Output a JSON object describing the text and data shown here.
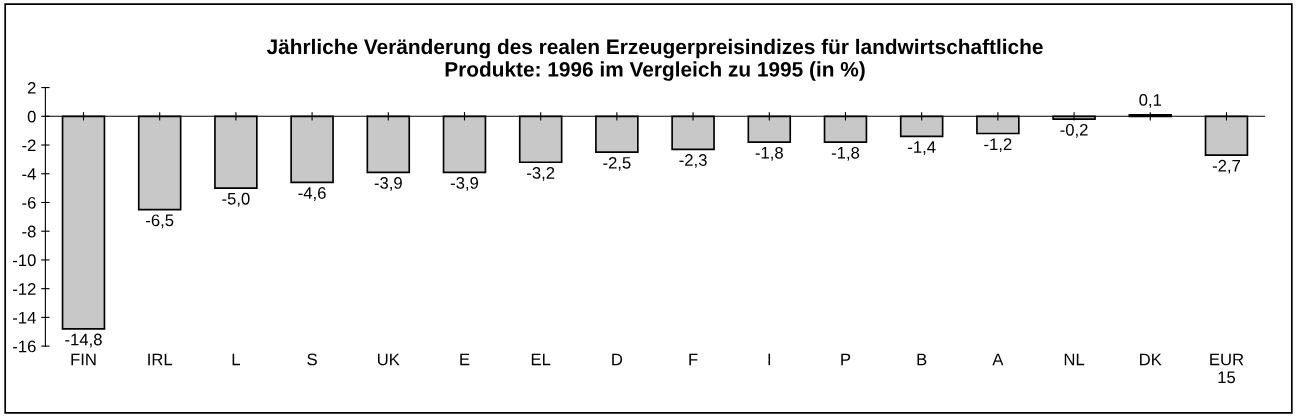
{
  "chart_data": {
    "type": "bar",
    "title": "Jährliche Veränderung des realen Erzeugerpreisindizes für landwirtschaftliche\nProdukte: 1996 im Vergleich zu 1995 (in %)",
    "categories": [
      "FIN",
      "IRL",
      "L",
      "S",
      "UK",
      "E",
      "EL",
      "D",
      "F",
      "I",
      "P",
      "B",
      "A",
      "NL",
      "DK",
      "EUR\n15"
    ],
    "values": [
      -14.8,
      -6.5,
      -5.0,
      -4.6,
      -3.9,
      -3.9,
      -3.2,
      -2.5,
      -2.3,
      -1.8,
      -1.8,
      -1.4,
      -1.2,
      -0.2,
      0.1,
      -2.7
    ],
    "value_labels": [
      "-14,8",
      "-6,5",
      "-5,0",
      "-4,6",
      "-3,9",
      "-3,9",
      "-3,2",
      "-2,5",
      "-2,3",
      "-1,8",
      "-1,8",
      "-1,4",
      "-1,2",
      "-0,2",
      "0,1",
      "-2,7"
    ],
    "color": "#c8c8c8",
    "ylim": [
      -16,
      2
    ],
    "yticks": [
      -16,
      -14,
      -12,
      -10,
      -8,
      -6,
      -4,
      -2,
      0,
      2
    ],
    "legend": false
  }
}
